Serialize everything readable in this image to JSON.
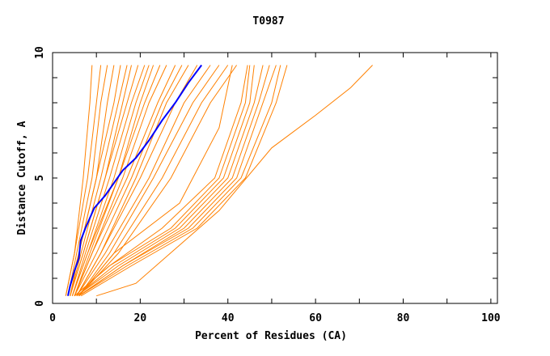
{
  "chart_data": {
    "type": "line",
    "title": "T0987",
    "xlabel": "Percent of Residues (CA)",
    "ylabel": "Distance Cutoff, A",
    "xlim": [
      0,
      101.5
    ],
    "ylim": [
      0,
      10
    ],
    "xticks": [
      "0",
      "20",
      "40",
      "60",
      "80",
      "100"
    ],
    "yticks": [
      "0",
      "5",
      "10"
    ],
    "grid": false,
    "colors": {
      "models": "#ff8000",
      "highlight": "#0000ff"
    },
    "highlight": {
      "points": [
        [
          3.5,
          0.3
        ],
        [
          4,
          0.7
        ],
        [
          5,
          1.3
        ],
        [
          6,
          1.8
        ],
        [
          6.4,
          2.5
        ],
        [
          7.5,
          3
        ],
        [
          9.5,
          3.8
        ],
        [
          12,
          4.3
        ],
        [
          14,
          4.8
        ],
        [
          16,
          5.3
        ],
        [
          19,
          5.8
        ],
        [
          22,
          6.5
        ],
        [
          25,
          7.3
        ],
        [
          28,
          8
        ],
        [
          31,
          8.8
        ],
        [
          34,
          9.5
        ]
      ]
    },
    "series": [
      {
        "points": [
          [
            3,
            0.3
          ],
          [
            5,
            2
          ],
          [
            7,
            5
          ],
          [
            8.5,
            8
          ],
          [
            9,
            9.5
          ]
        ]
      },
      {
        "points": [
          [
            3,
            0.3
          ],
          [
            5,
            2
          ],
          [
            8,
            5
          ],
          [
            10,
            8
          ],
          [
            11,
            9.5
          ]
        ]
      },
      {
        "points": [
          [
            3.5,
            0.3
          ],
          [
            5.5,
            2
          ],
          [
            9,
            5
          ],
          [
            11,
            8
          ],
          [
            12.5,
            9.5
          ]
        ]
      },
      {
        "points": [
          [
            3.5,
            0.3
          ],
          [
            6,
            2
          ],
          [
            10,
            5
          ],
          [
            12.5,
            8
          ],
          [
            14,
            9.5
          ]
        ]
      },
      {
        "points": [
          [
            4,
            0.3
          ],
          [
            6,
            2
          ],
          [
            10,
            5
          ],
          [
            14,
            8
          ],
          [
            15.5,
            9.5
          ]
        ]
      },
      {
        "points": [
          [
            4,
            0.3
          ],
          [
            6.5,
            2
          ],
          [
            11,
            5
          ],
          [
            15,
            8
          ],
          [
            17,
            9.5
          ]
        ]
      },
      {
        "points": [
          [
            4,
            0.3
          ],
          [
            7,
            2
          ],
          [
            12,
            5
          ],
          [
            16,
            8
          ],
          [
            18,
            9.5
          ]
        ]
      },
      {
        "points": [
          [
            4,
            0.3
          ],
          [
            7,
            2
          ],
          [
            12,
            5
          ],
          [
            17,
            8
          ],
          [
            19.5,
            9.5
          ]
        ]
      },
      {
        "points": [
          [
            4.5,
            0.3
          ],
          [
            7.5,
            2
          ],
          [
            13,
            5
          ],
          [
            18,
            8
          ],
          [
            21,
            9.5
          ]
        ]
      },
      {
        "points": [
          [
            4.5,
            0.3
          ],
          [
            8,
            2
          ],
          [
            14,
            5
          ],
          [
            19,
            8
          ],
          [
            22,
            9.5
          ]
        ]
      },
      {
        "points": [
          [
            4.5,
            0.3
          ],
          [
            8,
            2
          ],
          [
            15,
            5
          ],
          [
            20,
            8
          ],
          [
            23,
            9.5
          ]
        ]
      },
      {
        "points": [
          [
            5,
            0.3
          ],
          [
            8.5,
            2
          ],
          [
            15,
            5
          ],
          [
            21,
            8
          ],
          [
            24.5,
            9.5
          ]
        ]
      },
      {
        "points": [
          [
            5,
            0.3
          ],
          [
            9,
            2
          ],
          [
            16,
            5
          ],
          [
            22,
            8
          ],
          [
            26,
            9.5
          ]
        ]
      },
      {
        "points": [
          [
            5,
            0.3
          ],
          [
            9,
            2
          ],
          [
            17,
            5
          ],
          [
            24,
            8
          ],
          [
            28,
            9.5
          ]
        ]
      },
      {
        "points": [
          [
            5,
            0.3
          ],
          [
            10,
            2
          ],
          [
            18,
            5
          ],
          [
            25,
            8
          ],
          [
            29.5,
            9.5
          ]
        ]
      },
      {
        "points": [
          [
            5.5,
            0.3
          ],
          [
            11,
            2
          ],
          [
            19,
            5
          ],
          [
            26,
            8
          ],
          [
            31,
            9.5
          ]
        ]
      },
      {
        "points": [
          [
            5.5,
            0.3
          ],
          [
            11,
            2
          ],
          [
            20,
            5
          ],
          [
            28,
            8
          ],
          [
            33,
            9.5
          ]
        ]
      },
      {
        "points": [
          [
            5.5,
            0.3
          ],
          [
            12,
            2
          ],
          [
            22,
            5
          ],
          [
            30,
            8
          ],
          [
            36,
            9.5
          ]
        ]
      },
      {
        "points": [
          [
            6,
            0.3
          ],
          [
            13,
            2
          ],
          [
            23,
            5
          ],
          [
            32,
            8
          ],
          [
            38,
            9.5
          ]
        ]
      },
      {
        "points": [
          [
            6,
            0.3
          ],
          [
            14,
            2
          ],
          [
            25,
            5
          ],
          [
            34,
            8
          ],
          [
            40,
            9.5
          ]
        ]
      },
      {
        "points": [
          [
            6,
            0.3
          ],
          [
            15,
            2
          ],
          [
            27,
            5
          ],
          [
            36,
            8
          ],
          [
            42,
            9.5
          ]
        ]
      },
      {
        "points": [
          [
            6,
            0.3
          ],
          [
            14,
            2
          ],
          [
            29,
            4
          ],
          [
            38,
            7
          ],
          [
            41,
            9.5
          ]
        ]
      },
      {
        "points": [
          [
            5,
            0.3
          ],
          [
            13,
            1.5
          ],
          [
            25,
            3
          ],
          [
            37,
            5
          ],
          [
            43,
            8
          ],
          [
            44.5,
            9.5
          ]
        ]
      },
      {
        "points": [
          [
            5,
            0.3
          ],
          [
            13,
            1.5
          ],
          [
            27,
            3
          ],
          [
            38,
            5
          ],
          [
            44,
            8
          ],
          [
            45,
            9.5
          ]
        ]
      },
      {
        "points": [
          [
            5.5,
            0.3
          ],
          [
            14,
            1.5
          ],
          [
            28,
            3
          ],
          [
            39,
            5
          ],
          [
            45,
            8
          ],
          [
            46,
            9.5
          ]
        ]
      },
      {
        "points": [
          [
            5.5,
            0.3
          ],
          [
            15,
            1.5
          ],
          [
            29,
            3
          ],
          [
            40,
            5
          ],
          [
            46,
            8
          ],
          [
            48,
            9.5
          ]
        ]
      },
      {
        "points": [
          [
            6,
            0.3
          ],
          [
            16,
            1.5
          ],
          [
            30,
            3
          ],
          [
            41,
            5
          ],
          [
            47,
            8
          ],
          [
            49.5,
            9.5
          ]
        ]
      },
      {
        "points": [
          [
            6,
            0.3
          ],
          [
            16,
            1.5
          ],
          [
            31,
            3
          ],
          [
            42,
            5
          ],
          [
            48,
            8
          ],
          [
            51,
            9.5
          ]
        ]
      },
      {
        "points": [
          [
            6,
            0.3
          ],
          [
            17,
            1.5
          ],
          [
            32,
            3
          ],
          [
            43,
            5
          ],
          [
            50,
            8
          ],
          [
            52,
            9.5
          ]
        ]
      },
      {
        "points": [
          [
            6.5,
            0.3
          ],
          [
            18,
            1.5
          ],
          [
            33,
            3
          ],
          [
            44,
            5
          ],
          [
            51,
            8
          ],
          [
            53.5,
            9.5
          ]
        ]
      },
      {
        "points": [
          [
            10,
            0.3
          ],
          [
            19,
            0.8
          ],
          [
            38,
            3.7
          ],
          [
            50,
            6.2
          ],
          [
            60,
            7.5
          ],
          [
            68,
            8.6
          ],
          [
            73,
            9.5
          ]
        ]
      }
    ]
  }
}
